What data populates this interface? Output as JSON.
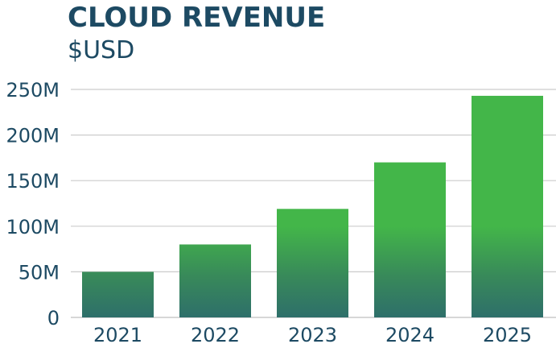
{
  "chart_data": {
    "type": "bar",
    "title": "CLOUD REVENUE",
    "subtitle": "$USD",
    "categories": [
      "2021",
      "2022",
      "2023",
      "2024",
      "2025"
    ],
    "values": [
      50,
      80,
      119,
      170,
      243
    ],
    "ylim": [
      0,
      250
    ],
    "yticks": [
      0,
      50,
      100,
      150,
      200,
      250
    ],
    "ytick_labels": [
      "0",
      "50M",
      "100M",
      "150M",
      "200M",
      "250M"
    ],
    "grid": true,
    "legend": "none",
    "colors": {
      "bar_top": "#43b649",
      "bar_bottom": "#2e6f6a",
      "grid": "#cccccc",
      "text": "#1d4a63"
    }
  }
}
